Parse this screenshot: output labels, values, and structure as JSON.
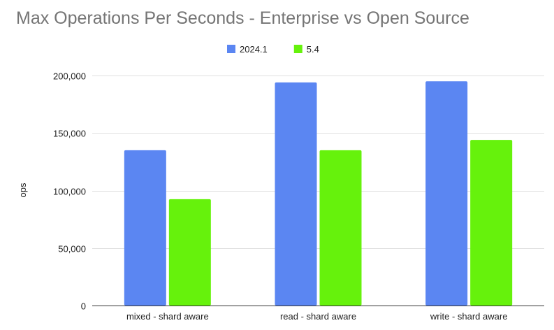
{
  "chart_data": {
    "type": "bar",
    "title": "Max Operations Per Seconds - Enterprise vs Open Source",
    "xlabel": "",
    "ylabel": "ops",
    "categories": [
      "mixed - shard aware",
      "read - shard aware",
      "write - shard aware"
    ],
    "series": [
      {
        "name": "2024.1",
        "values": [
          135000,
          194000,
          195000
        ],
        "color": "#5b86f2"
      },
      {
        "name": "5.4",
        "values": [
          92500,
          135000,
          144000
        ],
        "color": "#66f20c"
      }
    ],
    "ylim": [
      0,
      200000
    ],
    "yticks": [
      0,
      50000,
      100000,
      150000,
      200000
    ],
    "ytick_labels": [
      "0",
      "50,000",
      "100,000",
      "150,000",
      "200,000"
    ],
    "grid": true,
    "legend_position": "top-center",
    "colors": {
      "title": "#757575",
      "gridline": "#e0e0e0",
      "axis": "#333333",
      "text": "#222222"
    }
  }
}
